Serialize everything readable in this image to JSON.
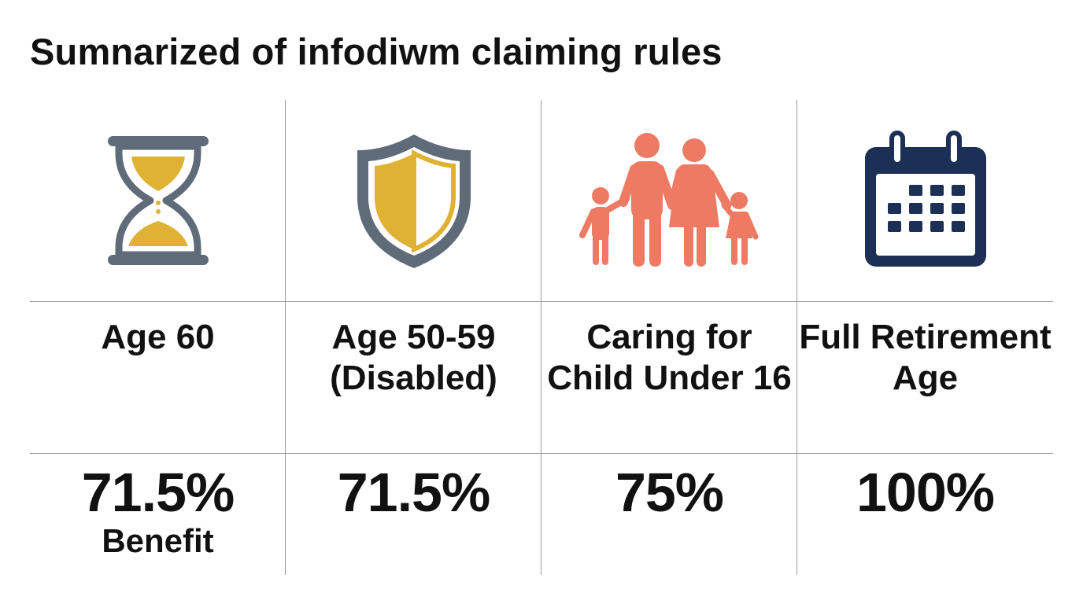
{
  "title": "Sumnarized of infodiwm claiming rules",
  "colors": {
    "gray": "#5f6b78",
    "gold": "#e0b234",
    "coral": "#ef7a63",
    "navy": "#1c2f55"
  },
  "columns": [
    {
      "icon": "hourglass-icon",
      "label": "Age 60",
      "value": "71.5%",
      "sub": "Benefit"
    },
    {
      "icon": "shield-icon",
      "label": "Age 50-59 (Disabled)",
      "value": "71.5%",
      "sub": ""
    },
    {
      "icon": "family-icon",
      "label": "Caring for Child Under 16",
      "value": "75%",
      "sub": ""
    },
    {
      "icon": "calendar-icon",
      "label": "Full Retirement Age",
      "value": "100%",
      "sub": ""
    }
  ]
}
